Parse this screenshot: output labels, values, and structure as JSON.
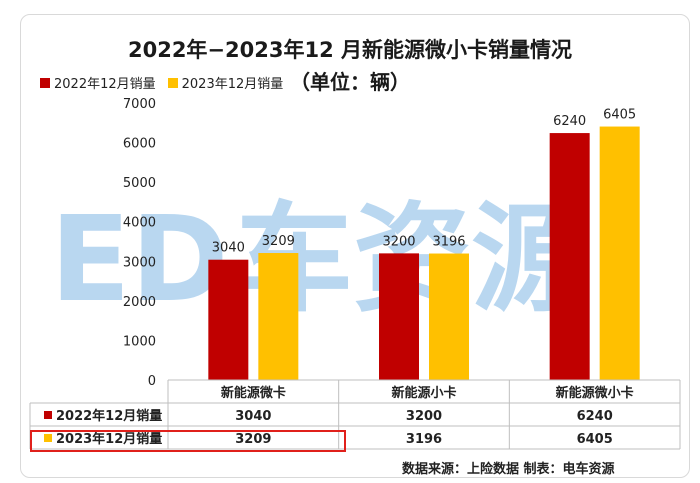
{
  "chart_data": {
    "type": "bar",
    "title": "2022年−2023年12 月新能源微小卡销量情况",
    "subtitle": "（单位：辆）",
    "categories": [
      "新能源微卡",
      "新能源小卡",
      "新能源微小卡"
    ],
    "series": [
      {
        "name": "2022年12月销量",
        "values": [
          3040,
          3200,
          6240
        ],
        "color": "#c00000"
      },
      {
        "name": "2023年12月销量",
        "values": [
          3209,
          3196,
          6405
        ],
        "color": "#ffc000"
      }
    ],
    "ylim": [
      0,
      7000
    ],
    "yticks": [
      0,
      1000,
      2000,
      3000,
      4000,
      5000,
      6000,
      7000
    ],
    "legend_position": "top-left",
    "data_table": true,
    "source_note": "数据来源：上险数据   制表：电车资源"
  },
  "watermark": {
    "text": "车资源",
    "logo_letters": "ED"
  }
}
